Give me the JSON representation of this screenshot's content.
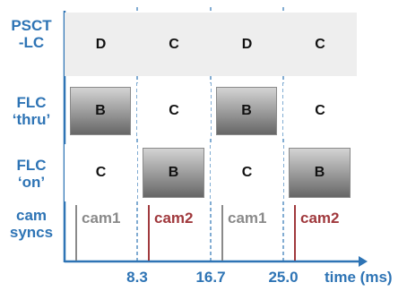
{
  "rows": [
    {
      "label_lines": [
        "PSCT",
        "-LC"
      ],
      "cells": [
        "D",
        "C",
        "D",
        "C"
      ]
    },
    {
      "label_lines": [
        "FLC",
        "‘thru’"
      ],
      "cells": [
        "B",
        "C",
        "B",
        "C"
      ]
    },
    {
      "label_lines": [
        "FLC",
        "‘on’"
      ],
      "cells": [
        "C",
        "B",
        "C",
        "B"
      ]
    }
  ],
  "cam_row": {
    "label_lines": [
      "cam",
      "syncs"
    ],
    "syncs": [
      {
        "label": "cam1",
        "color": "#8a8a8a"
      },
      {
        "label": "cam2",
        "color": "#a0393d"
      },
      {
        "label": "cam1",
        "color": "#8a8a8a"
      },
      {
        "label": "cam2",
        "color": "#a0393d"
      }
    ]
  },
  "axis": {
    "ticks": [
      "8.3",
      "16.7",
      "25.0"
    ],
    "title": "time (ms)",
    "color": "#2e74b5"
  },
  "colors": {
    "label_blue": "#2e74b5",
    "light_row": "#eeeeee",
    "dark_block": "#777777"
  }
}
